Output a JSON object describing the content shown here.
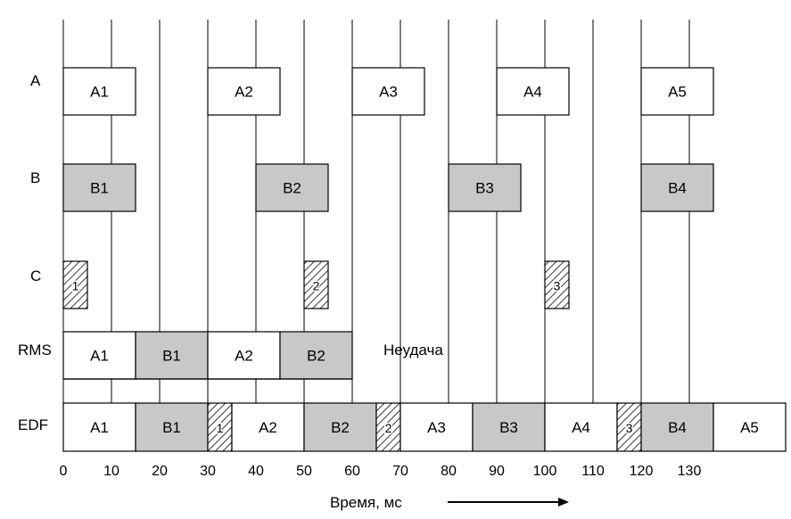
{
  "rows": [
    {
      "key": "A",
      "label": "A"
    },
    {
      "key": "B",
      "label": "B"
    },
    {
      "key": "C",
      "label": "C"
    },
    {
      "key": "RMS",
      "label": "RMS"
    },
    {
      "key": "EDF",
      "label": "EDF"
    }
  ],
  "ticks": [
    "0",
    "10",
    "20",
    "30",
    "40",
    "50",
    "60",
    "70",
    "80",
    "90",
    "100",
    "110",
    "120",
    "130"
  ],
  "x_axis_label": "Время, мс",
  "rms_failure_text": "Неудача",
  "colors": {
    "white_block": "#ffffff",
    "gray_block": "#c8c8c8",
    "stroke": "#000000"
  },
  "blocks": {
    "A": [
      {
        "name": "A1",
        "start": 0,
        "end": 15
      },
      {
        "name": "A2",
        "start": 30,
        "end": 45
      },
      {
        "name": "A3",
        "start": 60,
        "end": 75
      },
      {
        "name": "A4",
        "start": 90,
        "end": 105
      },
      {
        "name": "A5",
        "start": 120,
        "end": 135
      }
    ],
    "B": [
      {
        "name": "B1",
        "start": 0,
        "end": 15
      },
      {
        "name": "B2",
        "start": 40,
        "end": 55
      },
      {
        "name": "B3",
        "start": 80,
        "end": 95
      },
      {
        "name": "B4",
        "start": 120,
        "end": 135
      }
    ],
    "C": [
      {
        "name": "1",
        "start": 0,
        "end": 5
      },
      {
        "name": "2",
        "start": 50,
        "end": 55
      },
      {
        "name": "3",
        "start": 100,
        "end": 105
      }
    ],
    "RMS": [
      {
        "name": "A1",
        "start": 0,
        "end": 15,
        "fill": "white"
      },
      {
        "name": "B1",
        "start": 15,
        "end": 30,
        "fill": "gray"
      },
      {
        "name": "A2",
        "start": 30,
        "end": 45,
        "fill": "white"
      },
      {
        "name": "B2",
        "start": 45,
        "end": 60,
        "fill": "gray"
      }
    ],
    "EDF": [
      {
        "name": "A1",
        "start": 0,
        "end": 15,
        "fill": "white"
      },
      {
        "name": "B1",
        "start": 15,
        "end": 30,
        "fill": "gray"
      },
      {
        "name": "1",
        "start": 30,
        "end": 35,
        "fill": "hatch"
      },
      {
        "name": "A2",
        "start": 35,
        "end": 50,
        "fill": "white"
      },
      {
        "name": "B2",
        "start": 50,
        "end": 65,
        "fill": "gray"
      },
      {
        "name": "2",
        "start": 65,
        "end": 70,
        "fill": "hatch"
      },
      {
        "name": "A3",
        "start": 70,
        "end": 85,
        "fill": "white"
      },
      {
        "name": "B3",
        "start": 85,
        "end": 100,
        "fill": "gray"
      },
      {
        "name": "A4",
        "start": 100,
        "end": 115,
        "fill": "white"
      },
      {
        "name": "3",
        "start": 115,
        "end": 120,
        "fill": "hatch"
      },
      {
        "name": "B4",
        "start": 120,
        "end": 135,
        "fill": "gray"
      },
      {
        "name": "A5",
        "start": 135,
        "end": 150,
        "fill": "white"
      }
    ]
  }
}
